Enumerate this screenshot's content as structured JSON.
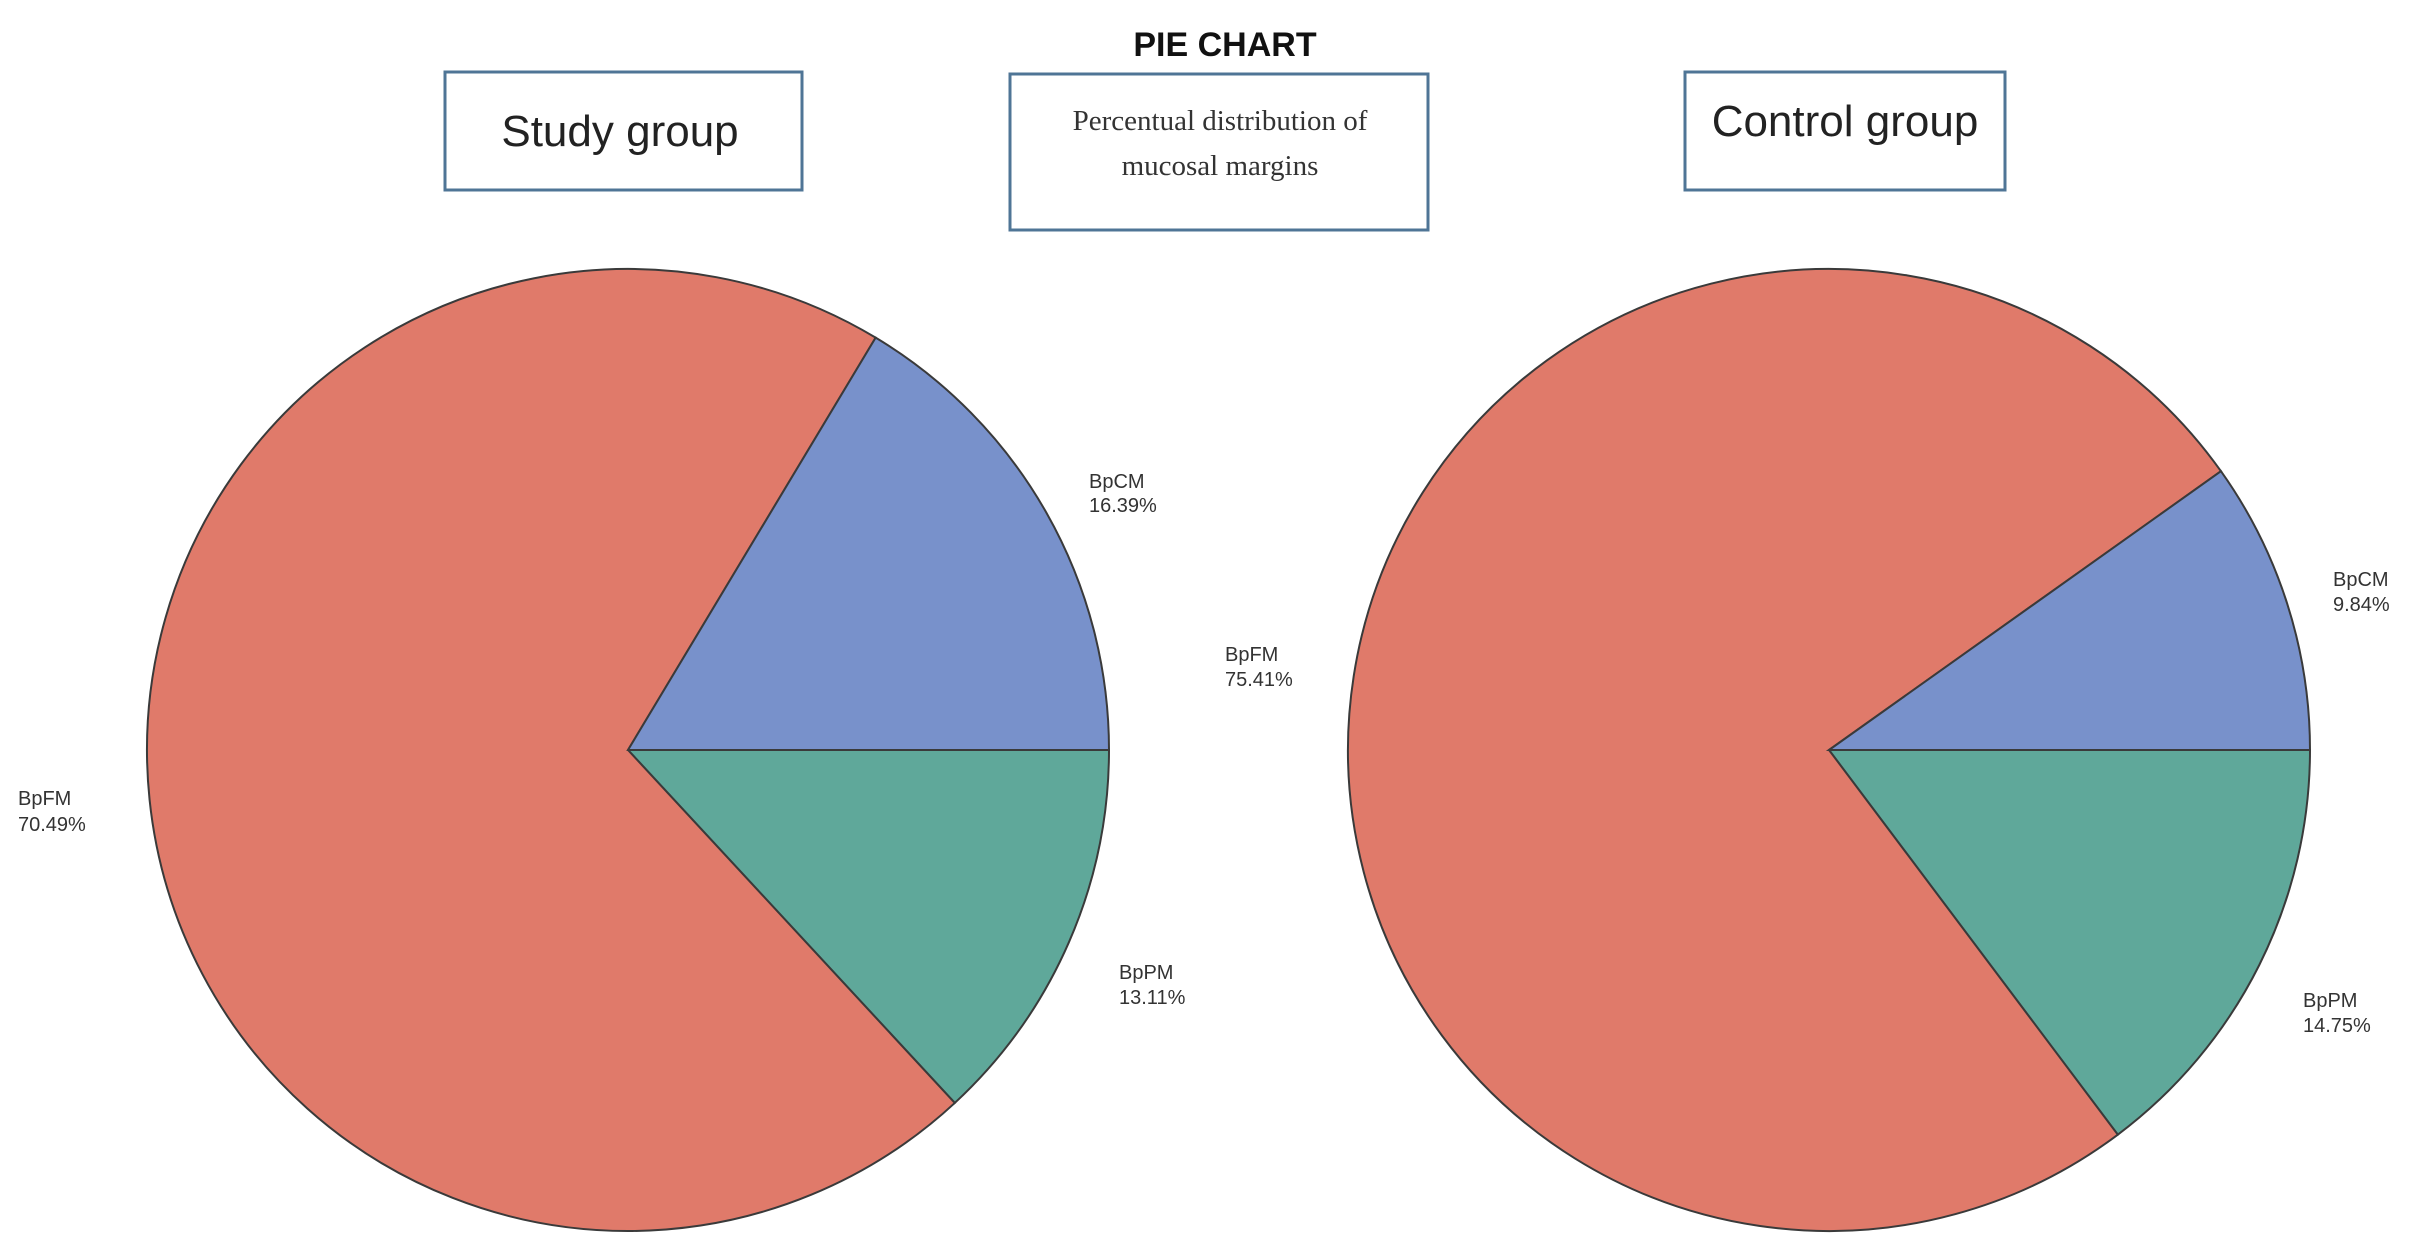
{
  "title": "PIE CHART",
  "caption": {
    "line1": "Percentual distribution of",
    "line2": "mucosal margins"
  },
  "colors": {
    "BpCM": "#7891CB",
    "BpFM": "#E07A6A",
    "BpPM": "#5FA89A",
    "box_border": "#4f7596"
  },
  "chart_data": [
    {
      "type": "pie",
      "title": "Study group",
      "slices": [
        {
          "label": "BpCM",
          "value": 16.39,
          "value_label": "16.39%",
          "color": "#7891CB"
        },
        {
          "label": "BpFM",
          "value": 70.49,
          "value_label": "70.49%",
          "color": "#E07A6A"
        },
        {
          "label": "BpPM",
          "value": 13.11,
          "value_label": "13.11%",
          "color": "#5FA89A"
        }
      ]
    },
    {
      "type": "pie",
      "title": "Control group",
      "slices": [
        {
          "label": "BpCM",
          "value": 9.84,
          "value_label": "9.84%",
          "color": "#7891CB"
        },
        {
          "label": "BpFM",
          "value": 75.41,
          "value_label": "75.41%",
          "color": "#E07A6A"
        },
        {
          "label": "BpPM",
          "value": 14.75,
          "value_label": "14.75%",
          "color": "#5FA89A"
        }
      ]
    }
  ]
}
